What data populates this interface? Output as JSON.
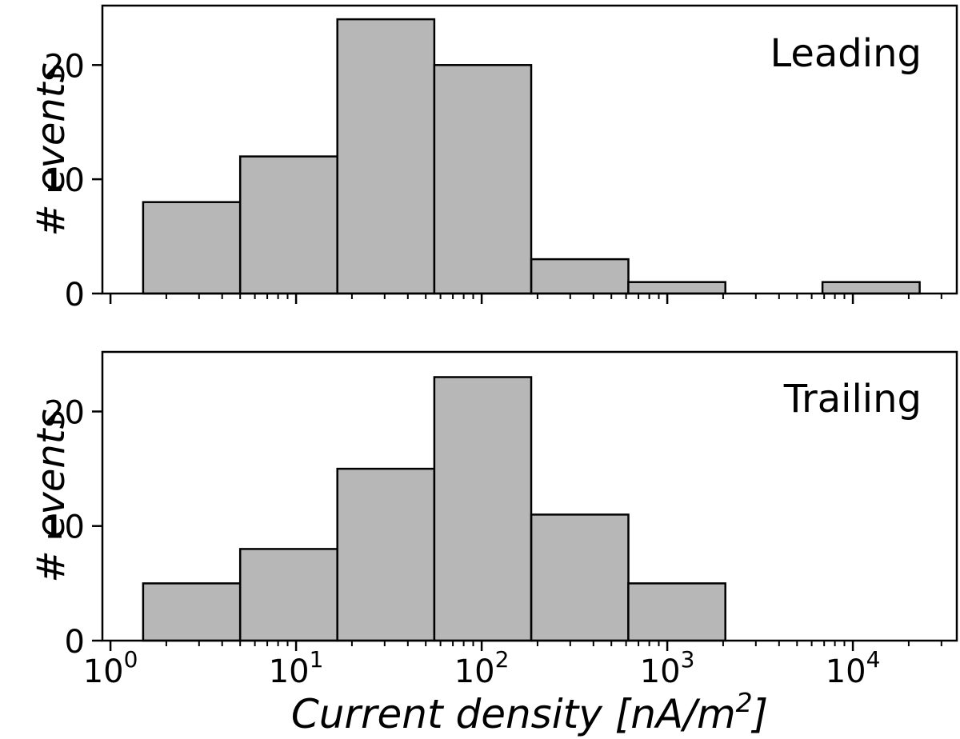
{
  "figure": {
    "background": "#ffffff",
    "bar_fill": "#b7b7b7",
    "line_color": "#000000",
    "xlabel": "Current density [nA/m²]",
    "ylabel": "# events"
  },
  "chart_data": [
    {
      "type": "bar",
      "subtype": "histogram",
      "annotation": "Leading",
      "x_scale": "log",
      "bin_edges": [
        1.5,
        5,
        16.7,
        55.6,
        185,
        617,
        2056,
        6860,
        22900
      ],
      "counts": [
        8,
        12,
        24,
        20,
        3,
        1,
        0,
        1
      ],
      "xlim": [
        0.905,
        36300
      ],
      "ylim": [
        0,
        25.2
      ],
      "yticks": [
        0,
        10,
        20
      ],
      "xticks": [
        1,
        10,
        100,
        1000,
        10000
      ],
      "xtick_labels": [
        "10⁰",
        "10¹",
        "10²",
        "10³",
        "10⁴"
      ],
      "xtick_labels_visible": false,
      "grid": false,
      "legend": "none",
      "ylabel": "# events",
      "xlabel": ""
    },
    {
      "type": "bar",
      "subtype": "histogram",
      "annotation": "Trailing",
      "x_scale": "log",
      "bin_edges": [
        1.5,
        5,
        16.7,
        55.6,
        185,
        617,
        2056,
        6860,
        22900
      ],
      "counts": [
        5,
        8,
        15,
        23,
        11,
        5,
        0,
        0
      ],
      "xlim": [
        0.905,
        36300
      ],
      "ylim": [
        0,
        25.2
      ],
      "yticks": [
        0,
        10,
        20
      ],
      "xticks": [
        1,
        10,
        100,
        1000,
        10000
      ],
      "xtick_labels": [
        "10⁰",
        "10¹",
        "10²",
        "10³",
        "10⁴"
      ],
      "xtick_labels_visible": true,
      "grid": false,
      "legend": "none",
      "ylabel": "# events",
      "xlabel": "Current density [nA/m²]"
    }
  ]
}
